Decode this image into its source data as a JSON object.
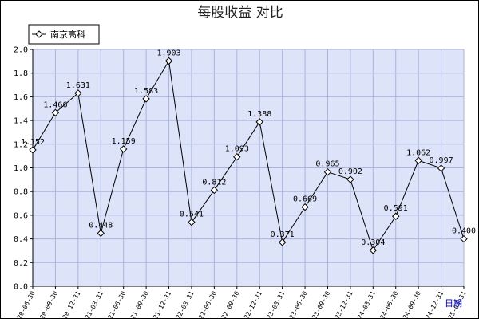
{
  "chart_data": {
    "type": "line",
    "title": "每股收益  对比",
    "xlabel": "日期",
    "ylabel": "",
    "ylim": [
      0.0,
      2.0
    ],
    "yticks": [
      "0.0",
      "0.2",
      "0.4",
      "0.6",
      "0.8",
      "1.0",
      "1.2",
      "1.4",
      "1.6",
      "1.8",
      "2.0"
    ],
    "grid": true,
    "legend_position": "top-left",
    "categories": [
      "2020-06-30",
      "2020-09-30",
      "2020-12-31",
      "2021-03-31",
      "2021-06-30",
      "2021-09-30",
      "2021-12-31",
      "2022-03-31",
      "2022-06-30",
      "2022-09-30",
      "2022-12-31",
      "2023-03-31",
      "2023-06-30",
      "2023-09-30",
      "2023-12-31",
      "2024-03-31",
      "2024-06-30",
      "2024-09-30",
      "2024-12-31",
      "2025-03-31"
    ],
    "series": [
      {
        "name": "南京高科",
        "values": [
          1.152,
          1.466,
          1.631,
          0.448,
          1.159,
          1.583,
          1.903,
          0.541,
          0.812,
          1.093,
          1.388,
          0.371,
          0.669,
          0.965,
          0.902,
          0.304,
          0.591,
          1.062,
          0.997,
          0.4
        ],
        "labels": [
          "1.152",
          "1.466",
          "1.631",
          "0.448",
          "1.159",
          "1.583",
          "1.903",
          "0.541",
          "0.812",
          "1.093",
          "1.388",
          "0.371",
          "0.669",
          "0.965",
          "0.902",
          "0.304",
          "0.591",
          "1.062",
          "0.997",
          "0.400"
        ]
      }
    ],
    "colors": {
      "plot_background": "#dde3f8",
      "grid": "#aab4dc",
      "line": "#000000",
      "marker_fill": "#ffffff"
    }
  }
}
